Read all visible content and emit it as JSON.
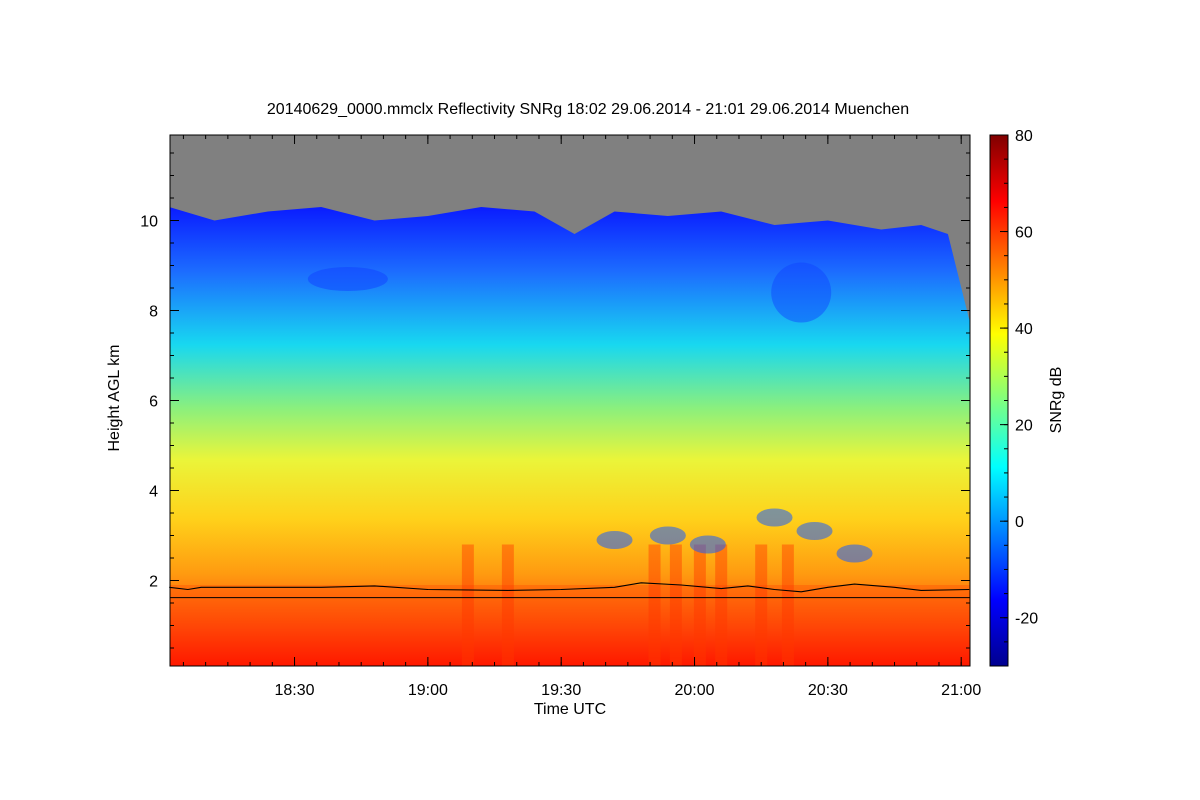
{
  "chart_data": {
    "type": "heatmap",
    "title": "20140629_0000.mmclx Reflectivity SNRg   18:02 29.06.2014 - 21:01 29.06.2014 Muenchen",
    "xlabel": "Time UTC",
    "ylabel": "Height AGL km",
    "colorbar_label": "SNRg dB",
    "xlim": [
      18.033,
      21.033
    ],
    "ylim": [
      0.1,
      11.9
    ],
    "x_ticks": [
      {
        "value": 18.5,
        "label": "18:30"
      },
      {
        "value": 19.0,
        "label": "19:00"
      },
      {
        "value": 19.5,
        "label": "19:30"
      },
      {
        "value": 20.0,
        "label": "20:00"
      },
      {
        "value": 20.5,
        "label": "20:30"
      },
      {
        "value": 21.0,
        "label": "21:00"
      }
    ],
    "y_ticks": [
      {
        "value": 2,
        "label": "2"
      },
      {
        "value": 4,
        "label": "4"
      },
      {
        "value": 6,
        "label": "6"
      },
      {
        "value": 8,
        "label": "8"
      },
      {
        "value": 10,
        "label": "10"
      }
    ],
    "colorbar_range": [
      -30,
      80
    ],
    "colorbar_ticks": [
      {
        "value": -20,
        "label": "-20"
      },
      {
        "value": 0,
        "label": "0"
      },
      {
        "value": 20,
        "label": "20"
      },
      {
        "value": 40,
        "label": "40"
      },
      {
        "value": 60,
        "label": "60"
      },
      {
        "value": 80,
        "label": "80"
      }
    ],
    "colormap": "jet",
    "no_signal_color": "#808080",
    "echo_top_km": [
      [
        18.03,
        10.3
      ],
      [
        18.2,
        10.0
      ],
      [
        18.4,
        10.2
      ],
      [
        18.6,
        10.3
      ],
      [
        18.8,
        10.0
      ],
      [
        19.0,
        10.1
      ],
      [
        19.2,
        10.3
      ],
      [
        19.4,
        10.2
      ],
      [
        19.55,
        9.7
      ],
      [
        19.7,
        10.2
      ],
      [
        19.9,
        10.1
      ],
      [
        20.1,
        10.2
      ],
      [
        20.3,
        9.9
      ],
      [
        20.5,
        10.0
      ],
      [
        20.7,
        9.8
      ],
      [
        20.85,
        9.9
      ],
      [
        20.95,
        9.7
      ],
      [
        21.03,
        7.8
      ]
    ],
    "line_series": {
      "name": "",
      "points": [
        [
          18.03,
          1.85
        ],
        [
          18.1,
          1.8
        ],
        [
          18.15,
          1.85
        ],
        [
          18.4,
          1.85
        ],
        [
          18.6,
          1.85
        ],
        [
          18.8,
          1.88
        ],
        [
          19.0,
          1.8
        ],
        [
          19.3,
          1.78
        ],
        [
          19.5,
          1.8
        ],
        [
          19.7,
          1.85
        ],
        [
          19.8,
          1.95
        ],
        [
          19.95,
          1.9
        ],
        [
          20.1,
          1.82
        ],
        [
          20.2,
          1.88
        ],
        [
          20.3,
          1.8
        ],
        [
          20.4,
          1.75
        ],
        [
          20.5,
          1.85
        ],
        [
          20.6,
          1.92
        ],
        [
          20.75,
          1.85
        ],
        [
          20.85,
          1.78
        ],
        [
          21.03,
          1.8
        ]
      ],
      "baseline_km": 1.62
    }
  }
}
